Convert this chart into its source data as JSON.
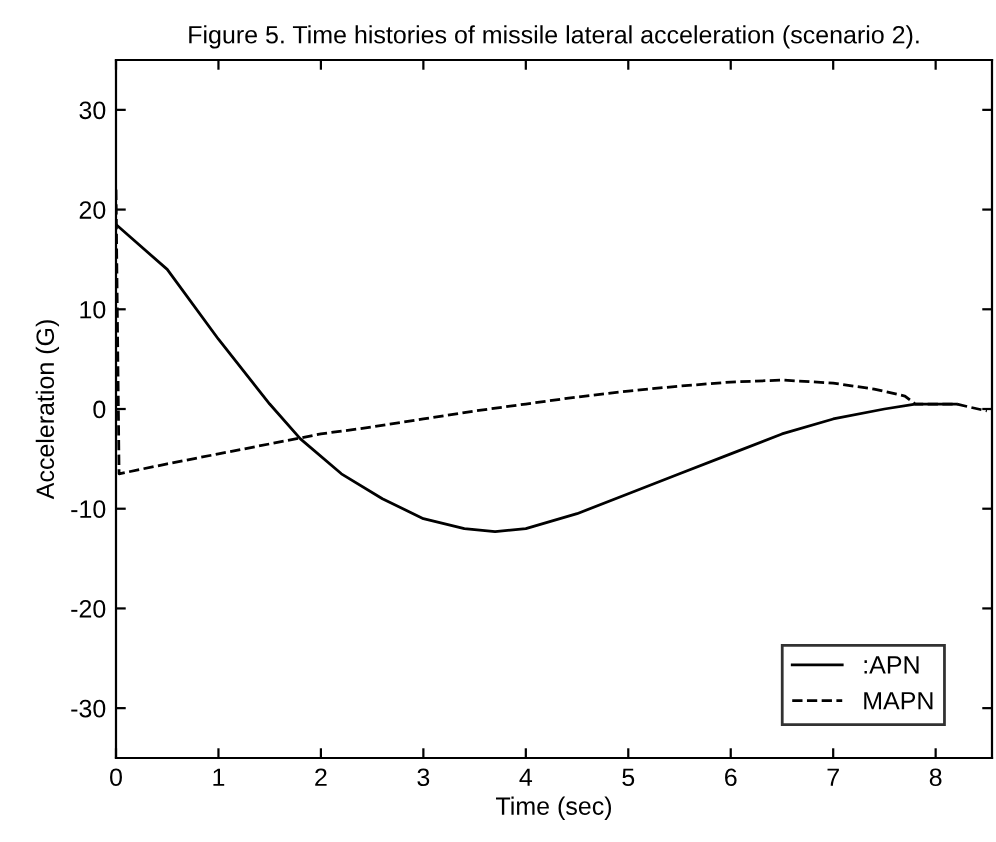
{
  "chart_data": {
    "type": "line",
    "title": "Figure 5. Time histories of missile lateral acceleration (scenario 2).",
    "xlabel": "Time (sec)",
    "ylabel": "Acceleration (G)",
    "xlim": [
      0,
      8.55
    ],
    "ylim": [
      -35,
      35
    ],
    "xticks": [
      0,
      1,
      2,
      3,
      4,
      5,
      6,
      7,
      8
    ],
    "yticks": [
      -30,
      -20,
      -10,
      0,
      10,
      20,
      30
    ],
    "grid": false,
    "legend": "bottom right",
    "series": [
      {
        "name": ":APN",
        "color": "#000000",
        "line_style": "solid",
        "x": [
          0,
          0.5,
          1,
          1.5,
          1.8,
          2.2,
          2.6,
          3,
          3.4,
          3.7,
          4,
          4.5,
          5,
          5.5,
          6,
          6.5,
          7,
          7.5,
          7.8,
          8.2
        ],
        "values": [
          18.5,
          14,
          7,
          0.5,
          -3,
          -6.5,
          -9,
          -11,
          -12,
          -12.3,
          -12,
          -10.5,
          -8.5,
          -6.5,
          -4.5,
          -2.5,
          -1,
          0,
          0.5,
          0.5
        ]
      },
      {
        "name": "MAPN",
        "color": "#000000",
        "line_style": "dashed",
        "x": [
          0,
          0.03,
          0.5,
          1,
          1.5,
          2,
          2.5,
          3,
          3.5,
          4,
          4.5,
          5,
          5.5,
          6,
          6.5,
          7,
          7.4,
          7.7,
          7.8,
          8.2,
          8.5
        ],
        "values": [
          22,
          -6.5,
          -5.5,
          -4.5,
          -3.5,
          -2.5,
          -1.8,
          -1,
          -0.2,
          0.5,
          1.2,
          1.8,
          2.3,
          2.7,
          2.9,
          2.6,
          2,
          1.3,
          0.5,
          0.5,
          -0.2
        ]
      }
    ]
  }
}
